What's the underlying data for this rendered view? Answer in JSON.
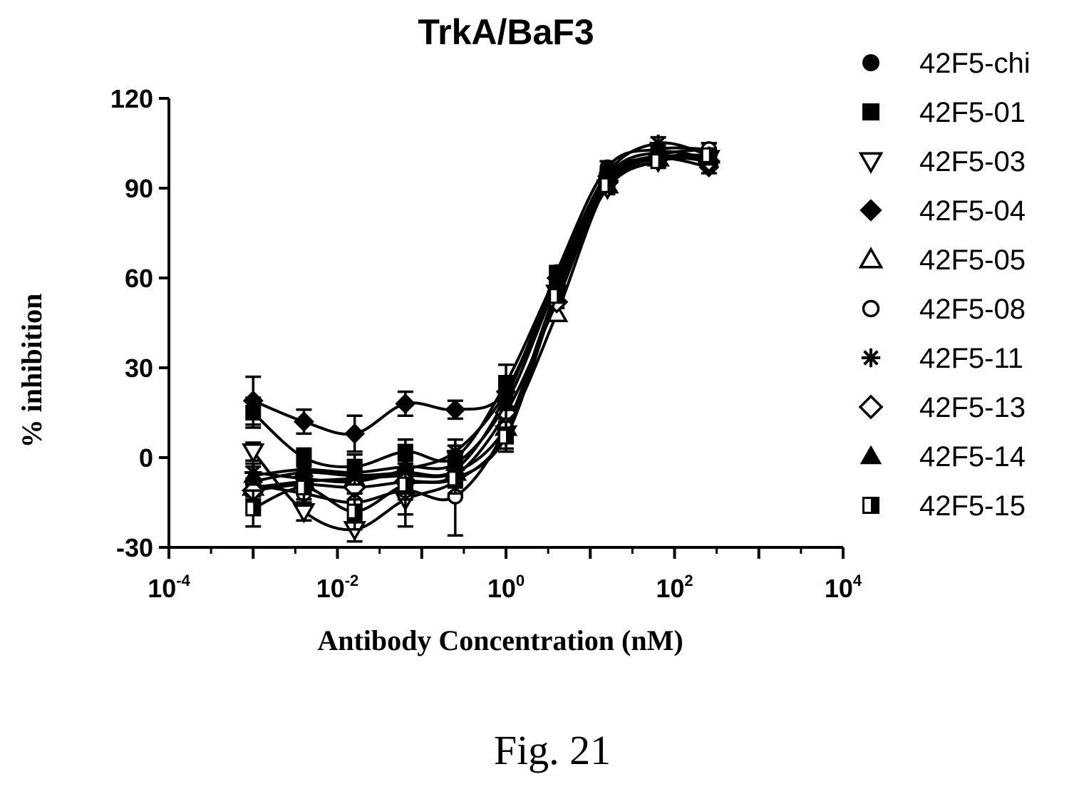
{
  "chart_data": {
    "type": "scatter",
    "title": "TrkA/BaF3",
    "xlabel": "Antibody Concentration (nM)",
    "ylabel": "% inhibition",
    "x_scale": "log10",
    "xlim": [
      0.0001,
      10000
    ],
    "ylim": [
      -30,
      120
    ],
    "x_ticks": [
      {
        "base": "10",
        "exp": "-4"
      },
      {
        "base": "10",
        "exp": "-2"
      },
      {
        "base": "10",
        "exp": "0"
      },
      {
        "base": "10",
        "exp": "2"
      },
      {
        "base": "10",
        "exp": "4"
      }
    ],
    "y_ticks": [
      "-30",
      "0",
      "30",
      "60",
      "90",
      "120"
    ],
    "legend_position": "right",
    "x": [
      0.001,
      0.004,
      0.016,
      0.064,
      0.25,
      1.0,
      4.0,
      16.0,
      64.0,
      256.0
    ],
    "series": [
      {
        "name": "42F5-chi",
        "marker": "circle-filled",
        "values": [
          -8,
          -5,
          -6,
          -5,
          -4,
          20,
          62,
          97,
          103,
          103
        ],
        "err": [
          3,
          3,
          4,
          4,
          4,
          5,
          2,
          2,
          2,
          2
        ]
      },
      {
        "name": "42F5-01",
        "marker": "square-filled",
        "values": [
          15,
          0,
          -3,
          2,
          0,
          25,
          61,
          94,
          100,
          101
        ],
        "err": [
          5,
          3,
          4,
          4,
          4,
          6,
          2,
          2,
          2,
          2
        ]
      },
      {
        "name": "42F5-03",
        "marker": "triangle-down-open",
        "values": [
          2,
          -18,
          -24,
          -14,
          -8,
          8,
          55,
          90,
          99,
          100
        ],
        "err": [
          3,
          3,
          4,
          5,
          5,
          5,
          2,
          2,
          2,
          2
        ]
      },
      {
        "name": "42F5-04",
        "marker": "diamond-filled",
        "values": [
          19,
          12,
          8,
          18,
          16,
          22,
          60,
          94,
          100,
          97
        ],
        "err": [
          8,
          4,
          6,
          4,
          3,
          5,
          2,
          2,
          2,
          2
        ]
      },
      {
        "name": "42F5-05",
        "marker": "triangle-up-open",
        "values": [
          -10,
          -8,
          -7,
          -6,
          -5,
          10,
          48,
          91,
          100,
          101
        ],
        "err": [
          3,
          3,
          3,
          4,
          4,
          4,
          2,
          2,
          2,
          2
        ]
      },
      {
        "name": "42F5-08",
        "marker": "circle-open",
        "values": [
          -9,
          -12,
          -15,
          -11,
          -13,
          10,
          56,
          93,
          101,
          103
        ],
        "err": [
          4,
          4,
          6,
          12,
          13,
          4,
          2,
          2,
          2,
          2
        ]
      },
      {
        "name": "42F5-11",
        "marker": "asterisk",
        "values": [
          -5,
          -7,
          -8,
          -4,
          2,
          22,
          60,
          95,
          105,
          101
        ],
        "err": [
          3,
          3,
          4,
          4,
          4,
          5,
          2,
          2,
          2,
          2
        ]
      },
      {
        "name": "42F5-13",
        "marker": "diamond-open",
        "values": [
          -11,
          -9,
          -10,
          -8,
          -6,
          15,
          52,
          92,
          100,
          99
        ],
        "err": [
          3,
          3,
          4,
          4,
          4,
          5,
          2,
          2,
          2,
          2
        ]
      },
      {
        "name": "42F5-14",
        "marker": "triangle-up-filled",
        "values": [
          -6,
          -4,
          -5,
          -3,
          -2,
          18,
          58,
          94,
          102,
          100
        ],
        "err": [
          3,
          3,
          4,
          4,
          4,
          5,
          2,
          2,
          2,
          2
        ]
      },
      {
        "name": "42F5-15",
        "marker": "square-half",
        "values": [
          -17,
          -10,
          -18,
          -9,
          -7,
          7,
          54,
          91,
          99,
          101
        ],
        "err": [
          6,
          4,
          6,
          5,
          5,
          5,
          2,
          2,
          2,
          2
        ]
      }
    ],
    "caption": "Fig. 21"
  }
}
